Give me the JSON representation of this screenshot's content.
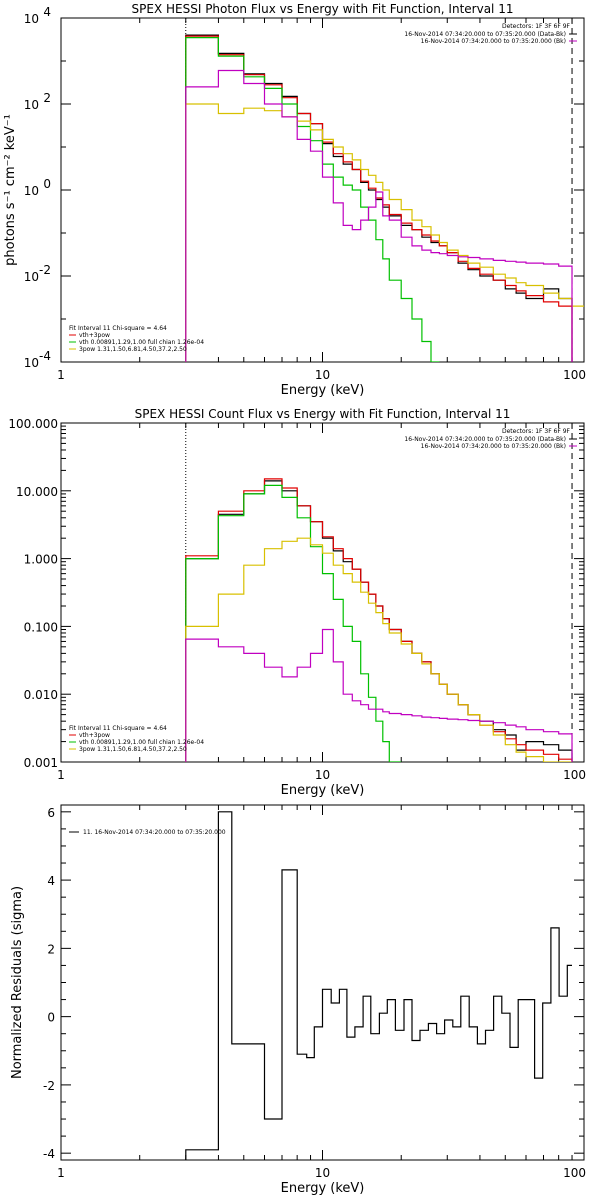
{
  "chart_data": [
    {
      "type": "line",
      "title": "SPEX HESSI Photon Flux vs Energy with Fit Function, Interval 11",
      "xlabel": "Energy (keV)",
      "ylabel": "photons s⁻¹ cm⁻² keV⁻¹",
      "xscale": "log",
      "yscale": "log",
      "xlim": [
        1,
        100
      ],
      "ylim": [
        0.0001,
        10000
      ],
      "x_ticks": [
        "1",
        "10",
        "100"
      ],
      "y_ticks": [
        {
          "base": "10",
          "exp": "-4"
        },
        {
          "base": "10",
          "exp": "-2"
        },
        {
          "base": "10",
          "exp": "0"
        },
        {
          "base": "10",
          "exp": "2"
        },
        {
          "base": "10",
          "exp": "4"
        }
      ],
      "legend_topright": {
        "header": "Detectors: 1F 3F 6F 9F",
        "entries": [
          {
            "text": "16-Nov-2014 07:34:20.000 to 07:35:20.000 (Data-Bk)",
            "color": "#000000"
          },
          {
            "text": "16-Nov-2014 07:34:20.000 to 07:35:20.000 (Bk)",
            "color": "#c000c0"
          }
        ]
      },
      "legend_bottomleft": {
        "header": "Fit Interval 11    Chi-square = 4.64",
        "entries": [
          {
            "text": "vth+3pow",
            "color": "#e00000"
          },
          {
            "text": "vth 0.00891,1.29,1.00  full chian 1.26e-04",
            "color": "#00c000"
          },
          {
            "text": "3pow 1.31,1.50,6.81,4.50,37.2,2.50",
            "color": "#d8c000"
          }
        ]
      },
      "vlines": [
        {
          "x": 3.0,
          "style": "dotted",
          "color": "#000000"
        },
        {
          "x": 90,
          "style": "dashed",
          "color": "#000000"
        }
      ],
      "x_edges": [
        3.0,
        3.5,
        4.0,
        4.5,
        5.0,
        5.5,
        6.0,
        6.5,
        7.0,
        7.5,
        8.0,
        8.5,
        9.0,
        9.5,
        10.0,
        11.0,
        12.0,
        13.0,
        14.0,
        15.0,
        16.0,
        17.0,
        18.0,
        20.0,
        22.0,
        24.0,
        26.0,
        28.0,
        30.0,
        33.0,
        36.0,
        40.0,
        45.0,
        50.0,
        55.0,
        60.0,
        70.0,
        80.0,
        90.0,
        100.0
      ],
      "series": [
        {
          "name": "Data-Bk",
          "color": "#000000",
          "values": [
            4000,
            4000,
            1500,
            1500,
            500,
            500,
            300,
            300,
            150,
            150,
            60,
            60,
            35,
            35,
            12,
            6,
            4,
            3,
            1.5,
            1,
            0.6,
            0.4,
            0.25,
            0.15,
            0.12,
            0.08,
            0.06,
            0.05,
            0.035,
            0.02,
            0.014,
            0.01,
            0.008,
            0.005,
            0.004,
            0.003,
            0.005,
            0.003,
            null
          ]
        },
        {
          "name": "vth+3pow",
          "color": "#e00000",
          "values": [
            3800,
            3800,
            1400,
            1400,
            480,
            480,
            280,
            280,
            140,
            140,
            60,
            60,
            35,
            35,
            13,
            7,
            4.5,
            3,
            1.6,
            1.1,
            0.65,
            0.45,
            0.27,
            0.17,
            0.12,
            0.09,
            0.065,
            0.05,
            0.035,
            0.022,
            0.015,
            0.011,
            0.008,
            0.006,
            0.0045,
            0.0035,
            0.0025,
            0.002,
            null
          ]
        },
        {
          "name": "vth",
          "color": "#00c000",
          "values": [
            3500,
            3500,
            1300,
            1300,
            430,
            430,
            230,
            230,
            100,
            100,
            30,
            30,
            14,
            14,
            4,
            2,
            1.3,
            1,
            0.4,
            0.2,
            0.07,
            0.025,
            0.008,
            0.003,
            0.001,
            0.0003,
            8e-05,
            null,
            null,
            null,
            null,
            null,
            null,
            null,
            null,
            null,
            null,
            null,
            null
          ]
        },
        {
          "name": "3pow",
          "color": "#d8c000",
          "values": [
            100,
            100,
            60,
            60,
            80,
            80,
            70,
            70,
            50,
            50,
            40,
            40,
            25,
            25,
            15,
            10,
            7,
            5,
            3,
            2.2,
            1.5,
            1,
            0.6,
            0.35,
            0.2,
            0.14,
            0.09,
            0.06,
            0.04,
            0.03,
            0.02,
            0.016,
            0.011,
            0.009,
            0.007,
            0.006,
            0.004,
            0.003,
            0.002
          ]
        },
        {
          "name": "Bk",
          "color": "#c000c0",
          "values": [
            250,
            250,
            600,
            600,
            300,
            300,
            100,
            100,
            50,
            50,
            15,
            15,
            8,
            8,
            2,
            0.5,
            0.15,
            0.12,
            0.2,
            0.4,
            0.9,
            0.25,
            0.2,
            0.08,
            0.05,
            0.04,
            0.035,
            0.033,
            0.03,
            0.028,
            0.027,
            0.025,
            0.023,
            0.022,
            0.021,
            0.02,
            0.019,
            0.017,
            null
          ]
        }
      ]
    },
    {
      "type": "line",
      "title": "SPEX HESSI Count Flux vs Energy with Fit Function, Interval 11",
      "xlabel": "Energy (keV)",
      "ylabel": "",
      "xscale": "log",
      "yscale": "log",
      "xlim": [
        1,
        100
      ],
      "ylim": [
        0.001,
        100
      ],
      "x_ticks": [
        "1",
        "10",
        "100"
      ],
      "y_ticks": [
        "0.001",
        "0.010",
        "0.100",
        "1.000",
        "10.000",
        "100.000"
      ],
      "legend_topright": {
        "header": "Detectors: 1F 3F 6F 9F",
        "entries": [
          {
            "text": "16-Nov-2014 07:34:20.000 to 07:35:20.000 (Data-Bk)",
            "color": "#000000"
          },
          {
            "text": "16-Nov-2014 07:34:20.000 to 07:35:20.000 (Bk)",
            "color": "#c000c0"
          }
        ]
      },
      "legend_bottomleft": {
        "header": "Fit Interval 11    Chi-square = 4.64",
        "entries": [
          {
            "text": "vth+3pow",
            "color": "#e00000"
          },
          {
            "text": "vth 0.00891,1.29,1.00  full chian 1.26e-04",
            "color": "#00c000"
          },
          {
            "text": "3pow 1.31,1.50,6.81,4.50,37.2,2.50",
            "color": "#d8c000"
          }
        ]
      },
      "vlines": [
        {
          "x": 3.0,
          "style": "dotted",
          "color": "#000000"
        },
        {
          "x": 90,
          "style": "dashed",
          "color": "#000000"
        }
      ],
      "x_edges": [
        3.0,
        3.5,
        4.0,
        4.5,
        5.0,
        5.5,
        6.0,
        6.5,
        7.0,
        7.5,
        8.0,
        8.5,
        9.0,
        9.5,
        10.0,
        11.0,
        12.0,
        13.0,
        14.0,
        15.0,
        16.0,
        17.0,
        18.0,
        20.0,
        22.0,
        24.0,
        26.0,
        28.0,
        30.0,
        33.0,
        36.0,
        40.0,
        45.0,
        50.0,
        55.0,
        60.0,
        70.0,
        80.0,
        90.0,
        100.0
      ],
      "series": [
        {
          "name": "Data-Bk",
          "color": "#000000",
          "values": [
            1.0,
            1.0,
            4.5,
            4.5,
            9,
            9,
            14,
            14,
            10,
            10,
            6,
            6,
            3.5,
            3.5,
            2.0,
            1.3,
            0.9,
            0.7,
            0.45,
            0.3,
            0.2,
            0.13,
            0.09,
            0.06,
            0.04,
            0.03,
            0.02,
            0.014,
            0.01,
            0.007,
            0.005,
            0.004,
            0.003,
            0.0025,
            0.0015,
            0.002,
            0.0018,
            0.0015,
            null
          ]
        },
        {
          "name": "vth+3pow",
          "color": "#e00000",
          "values": [
            1.1,
            1.1,
            5,
            5,
            10,
            10,
            15,
            15,
            11,
            11,
            6,
            6,
            3.5,
            3.5,
            2.1,
            1.4,
            1.0,
            0.7,
            0.45,
            0.3,
            0.2,
            0.13,
            0.09,
            0.06,
            0.04,
            0.03,
            0.02,
            0.014,
            0.01,
            0.007,
            0.005,
            0.0035,
            0.0028,
            0.0022,
            0.0018,
            0.0015,
            0.0013,
            0.0011,
            null
          ]
        },
        {
          "name": "vth",
          "color": "#00c000",
          "values": [
            1.0,
            1.0,
            4.3,
            4.3,
            9,
            9,
            12,
            12,
            8,
            8,
            4.0,
            4.0,
            1.5,
            1.5,
            0.6,
            0.25,
            0.1,
            0.06,
            0.02,
            0.009,
            0.004,
            0.002,
            0.001,
            null,
            null,
            null,
            null,
            null,
            null,
            null,
            null,
            null,
            null,
            null,
            null,
            null,
            null,
            null,
            null
          ]
        },
        {
          "name": "3pow",
          "color": "#d8c000",
          "values": [
            0.1,
            0.1,
            0.3,
            0.3,
            0.8,
            0.8,
            1.4,
            1.4,
            1.8,
            1.8,
            2.0,
            2.0,
            1.6,
            1.6,
            1.2,
            0.8,
            0.6,
            0.45,
            0.32,
            0.22,
            0.16,
            0.11,
            0.08,
            0.055,
            0.04,
            0.028,
            0.02,
            0.014,
            0.01,
            0.007,
            0.005,
            0.0035,
            0.0025,
            0.0018,
            0.0014,
            0.0012,
            0.001,
            0.001,
            null
          ]
        },
        {
          "name": "Bk",
          "color": "#c000c0",
          "values": [
            0.065,
            0.065,
            0.05,
            0.05,
            0.04,
            0.04,
            0.025,
            0.025,
            0.018,
            0.018,
            0.025,
            0.025,
            0.04,
            0.04,
            0.09,
            0.03,
            0.01,
            0.008,
            0.007,
            0.006,
            0.006,
            0.0055,
            0.0052,
            0.005,
            0.0048,
            0.0046,
            0.0045,
            0.0044,
            0.0043,
            0.0042,
            0.0041,
            0.004,
            0.0038,
            0.0035,
            0.0033,
            0.003,
            0.0028,
            0.0026,
            null
          ]
        }
      ]
    },
    {
      "type": "line",
      "title": "",
      "xlabel": "Energy (keV)",
      "ylabel": "Normalized Residuals (sigma)",
      "xscale": "log",
      "yscale": "linear",
      "xlim": [
        1,
        100
      ],
      "ylim": [
        -4.2,
        6.2
      ],
      "x_ticks": [
        "1",
        "10",
        "100"
      ],
      "y_ticks": [
        "-4",
        "-2",
        "0",
        "2",
        "4",
        "6"
      ],
      "legend": {
        "text": "11. 16-Nov-2014 07:34:20.000 to 07:35:20.000",
        "color": "#000000"
      },
      "x_edges": [
        3.0,
        4.0,
        4.5,
        5.3,
        6.0,
        7.0,
        7.5,
        8.0,
        8.7,
        9.3,
        10.0,
        10.8,
        11.6,
        12.4,
        13.3,
        14.3,
        15.3,
        16.5,
        17.7,
        19.0,
        20.5,
        22.0,
        23.6,
        25.4,
        27.3,
        29.3,
        31.5,
        33.8,
        36.4,
        39.1,
        42.0,
        45.1,
        48.5,
        52.1,
        56.0,
        60.2,
        64.7,
        69.5,
        74.7,
        80.3,
        86.3,
        90.0
      ],
      "series": [
        {
          "name": "residuals",
          "color": "#000000",
          "values": [
            -3.9,
            6.0,
            -0.8,
            -0.8,
            -3.0,
            4.3,
            4.3,
            -1.1,
            -1.2,
            -0.3,
            0.8,
            0.4,
            0.8,
            -0.6,
            -0.3,
            0.6,
            -0.5,
            0.1,
            0.5,
            -0.4,
            0.5,
            -0.7,
            -0.4,
            -0.2,
            -0.5,
            -0.1,
            -0.3,
            0.6,
            -0.3,
            -0.8,
            -0.4,
            0.6,
            0.1,
            -0.9,
            0.5,
            0.5,
            -1.8,
            0.4,
            2.6,
            0.6,
            1.5
          ]
        }
      ]
    }
  ]
}
